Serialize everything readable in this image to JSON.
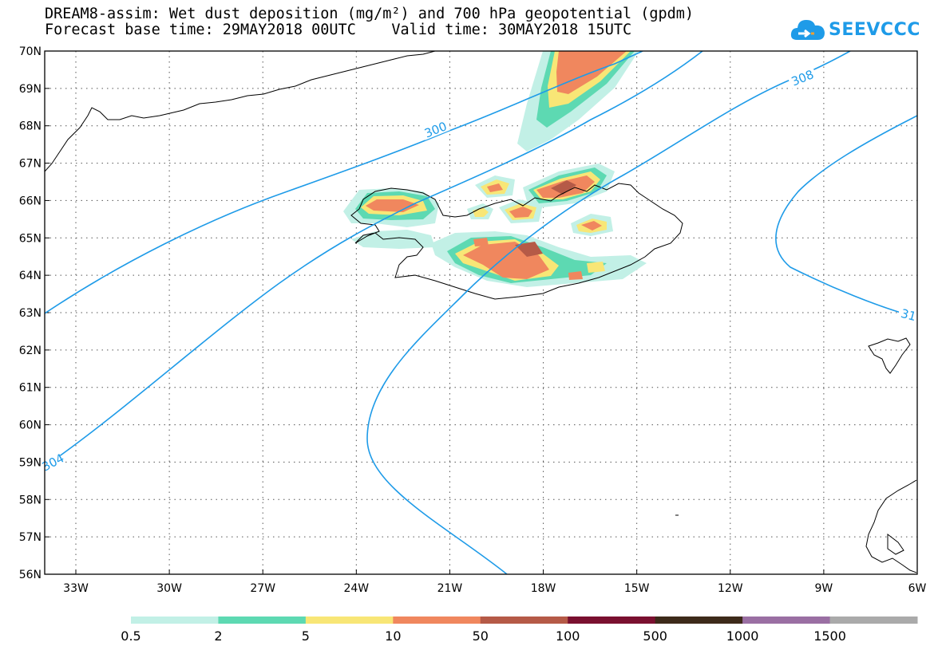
{
  "header": {
    "title_line1": "DREAM8-assim: Wet dust deposition (mg/m²) and 700 hPa geopotential (gpdm)",
    "title_line2": "Forecast base time: 29MAY2018 00UTC    Valid time: 30MAY2018 15UTC"
  },
  "logo": {
    "text": "SEEVCCC",
    "icon": "cloud-icon",
    "color": "#1e9be8"
  },
  "map": {
    "lat_labels": [
      "70N",
      "69N",
      "68N",
      "67N",
      "66N",
      "65N",
      "64N",
      "63N",
      "62N",
      "61N",
      "60N",
      "59N",
      "58N",
      "57N",
      "56N"
    ],
    "lon_labels": [
      "33W",
      "30W",
      "27W",
      "24W",
      "21W",
      "18W",
      "15W",
      "12W",
      "9W",
      "6W"
    ],
    "contour_color": "#1e9be8",
    "contour_labels": [
      "300",
      "308",
      "304",
      "31"
    ]
  },
  "colorbar": {
    "labels": [
      "0.5",
      "2",
      "5",
      "10",
      "50",
      "100",
      "500",
      "1000",
      "1500"
    ],
    "colors": [
      "#c2f0e6",
      "#5dd9b2",
      "#f8e676",
      "#f0875e",
      "#b55a47",
      "#7a1030",
      "#3d2a1a",
      "#9a6fa3",
      "#aaaaaa"
    ]
  }
}
